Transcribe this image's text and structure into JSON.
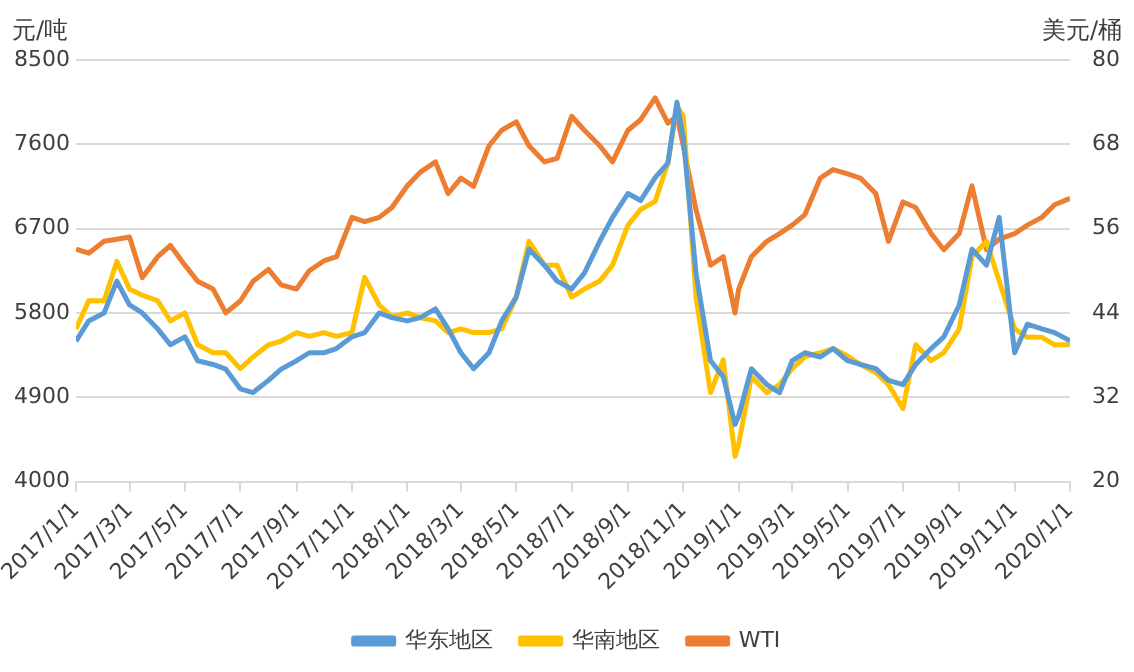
{
  "chart_data": {
    "type": "line",
    "ylabel": "元/吨",
    "y2label": "美元/桶",
    "x": [
      "2017-01-01",
      "2017-01-15",
      "2017-02-01",
      "2017-02-15",
      "2017-03-01",
      "2017-03-15",
      "2017-04-01",
      "2017-04-15",
      "2017-05-01",
      "2017-05-15",
      "2017-06-01",
      "2017-06-15",
      "2017-07-01",
      "2017-07-15",
      "2017-08-01",
      "2017-08-15",
      "2017-09-01",
      "2017-09-15",
      "2017-10-01",
      "2017-10-15",
      "2017-11-01",
      "2017-11-15",
      "2017-12-01",
      "2017-12-15",
      "2018-01-01",
      "2018-01-15",
      "2018-02-01",
      "2018-02-15",
      "2018-03-01",
      "2018-03-15",
      "2018-04-01",
      "2018-04-15",
      "2018-05-01",
      "2018-05-15",
      "2018-06-01",
      "2018-06-15",
      "2018-07-01",
      "2018-07-15",
      "2018-08-01",
      "2018-08-15",
      "2018-09-01",
      "2018-09-15",
      "2018-10-01",
      "2018-10-15",
      "2018-10-25",
      "2018-11-01",
      "2018-11-15",
      "2018-12-01",
      "2018-12-15",
      "2018-12-28",
      "2019-01-01",
      "2019-01-15",
      "2019-02-01",
      "2019-02-15",
      "2019-03-01",
      "2019-03-15",
      "2019-04-01",
      "2019-04-15",
      "2019-05-01",
      "2019-05-15",
      "2019-06-01",
      "2019-06-15",
      "2019-07-01",
      "2019-07-15",
      "2019-08-01",
      "2019-08-15",
      "2019-09-01",
      "2019-09-15",
      "2019-10-01",
      "2019-10-15",
      "2019-11-01",
      "2019-11-15",
      "2019-12-01",
      "2019-12-15",
      "2020-01-01"
    ],
    "series": [
      {
        "name": "华东地区",
        "color": "#5b9bd5",
        "values": [
          5500,
          5715,
          5800,
          6140,
          5885,
          5800,
          5630,
          5460,
          5545,
          5290,
          5250,
          5200,
          4990,
          4950,
          5080,
          5200,
          5290,
          5375,
          5375,
          5420,
          5545,
          5590,
          5800,
          5750,
          5715,
          5750,
          5843,
          5630,
          5375,
          5205,
          5375,
          5715,
          5970,
          6480,
          6310,
          6140,
          6055,
          6225,
          6565,
          6820,
          7075,
          7000,
          7245,
          7400,
          8050,
          7670,
          6225,
          5290,
          5120,
          4610,
          4700,
          5205,
          5035,
          4950,
          5290,
          5375,
          5330,
          5420,
          5290,
          5250,
          5205,
          5080,
          5035,
          5250,
          5420,
          5545,
          5885,
          6480,
          6310,
          6820,
          5375,
          5680,
          5630,
          5590,
          5503
        ]
      },
      {
        "name": "华南地区",
        "color": "#ffc000",
        "values": [
          5630,
          5930,
          5930,
          6350,
          6055,
          5990,
          5930,
          5715,
          5800,
          5460,
          5375,
          5375,
          5205,
          5330,
          5460,
          5500,
          5590,
          5550,
          5590,
          5550,
          5590,
          6180,
          5885,
          5760,
          5800,
          5750,
          5715,
          5590,
          5630,
          5590,
          5590,
          5630,
          5970,
          6565,
          6310,
          6310,
          5970,
          6055,
          6140,
          6310,
          6735,
          6905,
          6990,
          7400,
          8010,
          7900,
          5970,
          4950,
          5300,
          4270,
          4400,
          5120,
          4950,
          5035,
          5205,
          5333,
          5375,
          5420,
          5340,
          5250,
          5165,
          5035,
          4780,
          5460,
          5290,
          5375,
          5630,
          6400,
          6565,
          6140,
          5630,
          5540,
          5540,
          5460,
          5460
        ]
      },
      {
        "name": "WTI",
        "color": "#ed7d31",
        "axis": "y2",
        "values": [
          53.1,
          52.5,
          54.2,
          54.5,
          54.8,
          49,
          52,
          53.6,
          50.8,
          48.5,
          47.4,
          44,
          45.7,
          48.5,
          50.2,
          48,
          47.4,
          50,
          51.4,
          52,
          57.6,
          57,
          57.6,
          59,
          62.1,
          64,
          65.5,
          61,
          63.2,
          62,
          67.8,
          70,
          71.2,
          67.8,
          65.5,
          66,
          72,
          70,
          67.8,
          65.5,
          70,
          71.5,
          74.6,
          71,
          72,
          67.8,
          58.7,
          50.8,
          52,
          44,
          47.4,
          52,
          54.2,
          55.3,
          56.5,
          58,
          63.2,
          64.4,
          63.8,
          63.2,
          61,
          54.2,
          59.8,
          59,
          55.3,
          53,
          55.3,
          62.1,
          53,
          54.5,
          55.3,
          56.5,
          57.6,
          59.4,
          60.3
        ]
      }
    ],
    "xlim": [
      "2017-01-01",
      "2020-01-01"
    ],
    "xticks": [
      {
        "value": "2017-01-01",
        "label": "2017/1/1"
      },
      {
        "value": "2017-03-01",
        "label": "2017/3/1"
      },
      {
        "value": "2017-05-01",
        "label": "2017/5/1"
      },
      {
        "value": "2017-07-01",
        "label": "2017/7/1"
      },
      {
        "value": "2017-09-01",
        "label": "2017/9/1"
      },
      {
        "value": "2017-11-01",
        "label": "2017/11/1"
      },
      {
        "value": "2018-01-01",
        "label": "2018/1/1"
      },
      {
        "value": "2018-03-01",
        "label": "2018/3/1"
      },
      {
        "value": "2018-05-01",
        "label": "2018/5/1"
      },
      {
        "value": "2018-07-01",
        "label": "2018/7/1"
      },
      {
        "value": "2018-09-01",
        "label": "2018/9/1"
      },
      {
        "value": "2018-11-01",
        "label": "2018/11/1"
      },
      {
        "value": "2019-01-01",
        "label": "2019/1/1"
      },
      {
        "value": "2019-03-01",
        "label": "2019/3/1"
      },
      {
        "value": "2019-05-01",
        "label": "2019/5/1"
      },
      {
        "value": "2019-07-01",
        "label": "2019/7/1"
      },
      {
        "value": "2019-09-01",
        "label": "2019/9/1"
      },
      {
        "value": "2019-11-01",
        "label": "2019/11/1"
      },
      {
        "value": "2020-01-01",
        "label": "2020/1/1"
      }
    ],
    "ylim": [
      4000,
      8500
    ],
    "yticks": [
      4000,
      4900,
      5800,
      6700,
      7600,
      8500
    ],
    "y2lim": [
      20,
      80
    ],
    "y2ticks": [
      20,
      32,
      44,
      56,
      68,
      80
    ],
    "grid": "y",
    "legend": "bottom",
    "marker": "none",
    "line_style": "solid"
  }
}
